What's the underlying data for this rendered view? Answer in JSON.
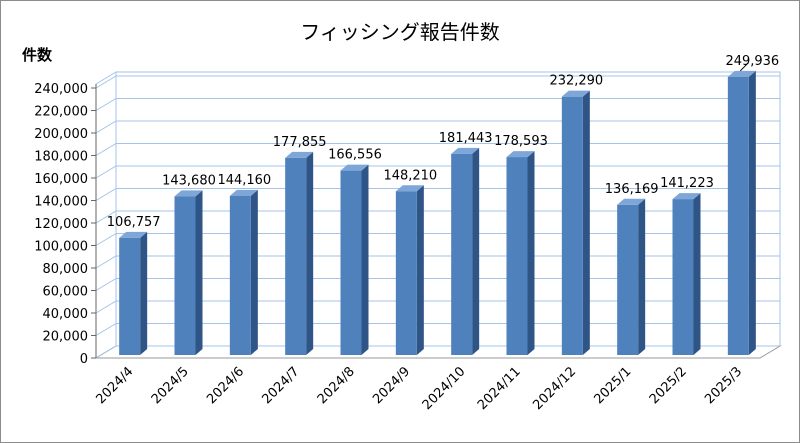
{
  "chart_data": {
    "type": "bar",
    "title": "フィッシング報告件数",
    "xlabel": "",
    "ylabel": "件数",
    "ylim": [
      0,
      240000
    ],
    "yticks": [
      0,
      20000,
      40000,
      60000,
      80000,
      100000,
      120000,
      140000,
      160000,
      180000,
      200000,
      220000,
      240000
    ],
    "ytick_labels": [
      "0",
      "20,000",
      "40,000",
      "60,000",
      "80,000",
      "100,000",
      "120,000",
      "140,000",
      "160,000",
      "180,000",
      "200,000",
      "220,000",
      "240,000"
    ],
    "categories": [
      "2024/4",
      "2024/5",
      "2024/6",
      "2024/7",
      "2024/8",
      "2024/9",
      "2024/10",
      "2024/11",
      "2024/12",
      "2025/1",
      "2025/2",
      "2025/3"
    ],
    "values": [
      106757,
      143680,
      144160,
      177855,
      166556,
      148210,
      181443,
      178593,
      232290,
      136169,
      141223,
      249936
    ],
    "value_labels": [
      "106,757",
      "143,680",
      "144,160",
      "177,855",
      "166,556",
      "148,210",
      "181,443",
      "178,593",
      "232,290",
      "136,169",
      "141,223",
      "249,936"
    ],
    "grid": true,
    "style": "3d-bar",
    "colors": {
      "bar_front": "#4f81bd",
      "bar_side": "#2f5587",
      "bar_top": "#7fa6d9",
      "grid": "#a6c4e8",
      "wall": "#ffffff"
    }
  }
}
